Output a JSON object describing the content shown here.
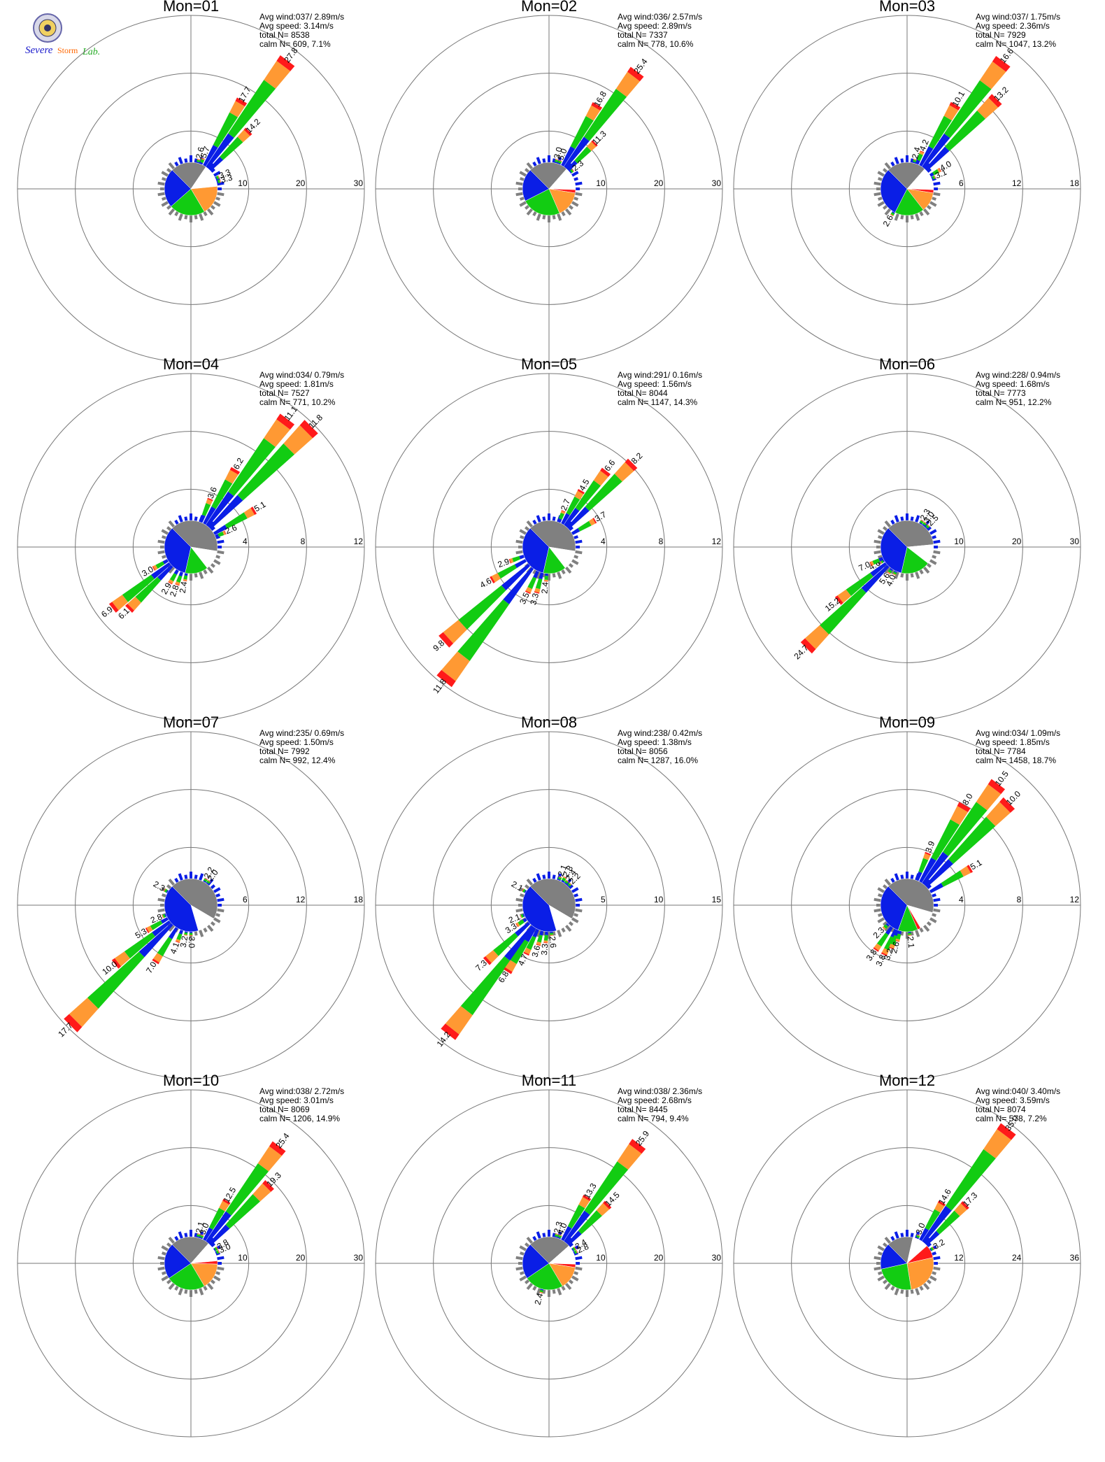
{
  "logo": {
    "line1": "Severe",
    "line2": "Storm",
    "line3": "Lab.",
    "icon": "university-seal-icon"
  },
  "colors": {
    "axis": "#000000",
    "ring": "#777777",
    "calm": "#ffffff",
    "blue": "#0a1ee6",
    "green": "#12cc12",
    "orange": "#ff9933",
    "red": "#ff1a1a",
    "gray": "#808080"
  },
  "chart_data": [
    {
      "type": "windrose",
      "title": "Mon=01",
      "avg_wind": "Avg wind:037/ 2.89m/s",
      "avg_speed": "Avg speed: 3.14m/s",
      "total_n": "total N=      8538",
      "calm_n": "calm N=    609,   7.1%",
      "rings": [
        10,
        20,
        30
      ],
      "pie": {
        "blue": 24,
        "green": 22,
        "orange": 18,
        "red": 0,
        "gray": 22,
        "white": 14
      },
      "bars": [
        {
          "dir": 37,
          "value": 27.8
        },
        {
          "dir": 30,
          "value": 17.7
        },
        {
          "dir": 45,
          "value": 14.2
        },
        {
          "dir": 22,
          "value": 5.7
        },
        {
          "dir": 15,
          "value": 2.6
        },
        {
          "dir": 67,
          "value": 3.3
        },
        {
          "dir": 75,
          "value": 3.3
        }
      ]
    },
    {
      "type": "windrose",
      "title": "Mon=02",
      "avg_wind": "Avg wind:036/ 2.57m/s",
      "avg_speed": "Avg speed: 2.89m/s",
      "total_n": "total N=      7337",
      "calm_n": "calm N=    778,  10.6%",
      "rings": [
        10,
        20,
        30
      ],
      "pie": {
        "blue": 20,
        "green": 24,
        "orange": 16,
        "red": 2,
        "gray": 24,
        "white": 14
      },
      "bars": [
        {
          "dir": 37,
          "value": 25.4
        },
        {
          "dir": 30,
          "value": 16.8
        },
        {
          "dir": 45,
          "value": 11.3
        },
        {
          "dir": 22,
          "value": 5.0
        },
        {
          "dir": 15,
          "value": 3.0
        },
        {
          "dir": 52,
          "value": 2.3
        }
      ]
    },
    {
      "type": "windrose",
      "title": "Mon=03",
      "avg_wind": "Avg wind:037/ 1.75m/s",
      "avg_speed": "Avg speed: 2.36m/s",
      "total_n": "total N=      7929",
      "calm_n": "calm N=   1047,  13.2%",
      "rings": [
        6,
        12,
        18
      ],
      "pie": {
        "blue": 30,
        "green": 18,
        "orange": 12,
        "red": 2,
        "gray": 24,
        "white": 14
      },
      "bars": [
        {
          "dir": 37,
          "value": 16.6
        },
        {
          "dir": 45,
          "value": 13.2
        },
        {
          "dir": 30,
          "value": 10.1
        },
        {
          "dir": 22,
          "value": 4.2
        },
        {
          "dir": 15,
          "value": 2.4
        },
        {
          "dir": 60,
          "value": 4.0
        },
        {
          "dir": 67,
          "value": 3.1
        },
        {
          "dir": 210,
          "value": 2.6
        }
      ]
    },
    {
      "type": "windrose",
      "title": "Mon=04",
      "avg_wind": "Avg wind:034/ 0.79m/s",
      "avg_speed": "Avg speed: 1.81m/s",
      "total_n": "total N=      7527",
      "calm_n": "calm N=    771,  10.2%",
      "rings": [
        4,
        8,
        12
      ],
      "pie": {
        "blue": 34,
        "green": 14,
        "orange": 0,
        "red": 0,
        "gray": 40,
        "white": 12
      },
      "bars": [
        {
          "dir": 37,
          "value": 11.1
        },
        {
          "dir": 45,
          "value": 11.8
        },
        {
          "dir": 30,
          "value": 6.2
        },
        {
          "dir": 22,
          "value": 3.6
        },
        {
          "dir": 60,
          "value": 5.1
        },
        {
          "dir": 67,
          "value": 2.6
        },
        {
          "dir": 232,
          "value": 6.9
        },
        {
          "dir": 225,
          "value": 6.1
        },
        {
          "dir": 240,
          "value": 3.0
        },
        {
          "dir": 210,
          "value": 2.9
        },
        {
          "dir": 200,
          "value": 2.8
        },
        {
          "dir": 190,
          "value": 2.4
        }
      ]
    },
    {
      "type": "windrose",
      "title": "Mon=05",
      "avg_wind": "Avg wind:291/ 0.16m/s",
      "avg_speed": "Avg speed: 1.56m/s",
      "total_n": "total N=      8044",
      "calm_n": "calm N=   1147,  14.3%",
      "rings": [
        4,
        8,
        12
      ],
      "pie": {
        "blue": 34,
        "green": 14,
        "orange": 0,
        "red": 0,
        "gray": 40,
        "white": 12
      },
      "bars": [
        {
          "dir": 45,
          "value": 8.2
        },
        {
          "dir": 37,
          "value": 6.6
        },
        {
          "dir": 30,
          "value": 4.5
        },
        {
          "dir": 22,
          "value": 2.7
        },
        {
          "dir": 60,
          "value": 3.7
        },
        {
          "dir": 218,
          "value": 11.8
        },
        {
          "dir": 228,
          "value": 9.8
        },
        {
          "dir": 240,
          "value": 4.6
        },
        {
          "dir": 250,
          "value": 2.9
        },
        {
          "dir": 205,
          "value": 3.5
        },
        {
          "dir": 195,
          "value": 3.3
        },
        {
          "dir": 185,
          "value": 2.4
        }
      ]
    },
    {
      "type": "windrose",
      "title": "Mon=06",
      "avg_wind": "Avg wind:228/ 0.94m/s",
      "avg_speed": "Avg speed: 1.68m/s",
      "total_n": "total N=      7773",
      "calm_n": "calm N=    951,  12.2%",
      "rings": [
        10,
        20,
        30
      ],
      "pie": {
        "blue": 34,
        "green": 18,
        "orange": 0,
        "red": 0,
        "gray": 36,
        "white": 12
      },
      "bars": [
        {
          "dir": 225,
          "value": 24.7
        },
        {
          "dir": 232,
          "value": 15.2
        },
        {
          "dir": 240,
          "value": 4.6
        },
        {
          "dir": 245,
          "value": 7.0
        },
        {
          "dir": 215,
          "value": 5.6
        },
        {
          "dir": 205,
          "value": 4.0
        },
        {
          "dir": 30,
          "value": 2.3
        },
        {
          "dir": 37,
          "value": 3.0
        },
        {
          "dir": 45,
          "value": 2.5
        }
      ]
    },
    {
      "type": "windrose",
      "title": "Mon=07",
      "avg_wind": "Avg wind:235/ 0.69m/s",
      "avg_speed": "Avg speed: 1.50m/s",
      "total_n": "total N=      7992",
      "calm_n": "calm N=    992,  12.4%",
      "rings": [
        6,
        12,
        18
      ],
      "pie": {
        "blue": 42,
        "green": 0,
        "orange": 0,
        "red": 0,
        "gray": 46,
        "white": 12
      },
      "bars": [
        {
          "dir": 225,
          "value": 17.7
        },
        {
          "dir": 232,
          "value": 10.0
        },
        {
          "dir": 240,
          "value": 5.3
        },
        {
          "dir": 248,
          "value": 2.8
        },
        {
          "dir": 212,
          "value": 7.0
        },
        {
          "dir": 200,
          "value": 4.1
        },
        {
          "dir": 190,
          "value": 3.2
        },
        {
          "dir": 180,
          "value": 3.0
        },
        {
          "dir": 300,
          "value": 2.3
        },
        {
          "dir": 30,
          "value": 2.2
        },
        {
          "dir": 37,
          "value": 2.0
        }
      ]
    },
    {
      "type": "windrose",
      "title": "Mon=08",
      "avg_wind": "Avg wind:238/ 0.42m/s",
      "avg_speed": "Avg speed: 1.38m/s",
      "total_n": "total N=      8056",
      "calm_n": "calm N=   1287,  16.0%",
      "rings": [
        5,
        10,
        15
      ],
      "pie": {
        "blue": 42,
        "green": 0,
        "orange": 0,
        "red": 0,
        "gray": 46,
        "white": 12
      },
      "bars": [
        {
          "dir": 218,
          "value": 14.2
        },
        {
          "dir": 228,
          "value": 7.3
        },
        {
          "dir": 212,
          "value": 6.8
        },
        {
          "dir": 238,
          "value": 3.3
        },
        {
          "dir": 248,
          "value": 2.1
        },
        {
          "dir": 205,
          "value": 4.7
        },
        {
          "dir": 195,
          "value": 3.6
        },
        {
          "dir": 185,
          "value": 3.3
        },
        {
          "dir": 175,
          "value": 2.6
        },
        {
          "dir": 300,
          "value": 2.1
        },
        {
          "dir": 22,
          "value": 2.1
        },
        {
          "dir": 30,
          "value": 2.8
        },
        {
          "dir": 37,
          "value": 2.4
        },
        {
          "dir": 45,
          "value": 2.2
        }
      ]
    },
    {
      "type": "windrose",
      "title": "Mon=09",
      "avg_wind": "Avg wind:034/ 1.09m/s",
      "avg_speed": "Avg speed: 1.85m/s",
      "total_n": "total N=      7784",
      "calm_n": "calm N=   1458,  18.7%",
      "rings": [
        4,
        8,
        12
      ],
      "pie": {
        "blue": 32,
        "green": 12,
        "orange": 0,
        "red": 2,
        "gray": 42,
        "white": 12
      },
      "bars": [
        {
          "dir": 37,
          "value": 10.5
        },
        {
          "dir": 45,
          "value": 10.0
        },
        {
          "dir": 30,
          "value": 8.0
        },
        {
          "dir": 22,
          "value": 3.9
        },
        {
          "dir": 60,
          "value": 5.1
        },
        {
          "dir": 215,
          "value": 3.8
        },
        {
          "dir": 205,
          "value": 3.8
        },
        {
          "dir": 200,
          "value": 3.2
        },
        {
          "dir": 225,
          "value": 2.3
        },
        {
          "dir": 195,
          "value": 2.6
        },
        {
          "dir": 175,
          "value": 2.1
        }
      ]
    },
    {
      "type": "windrose",
      "title": "Mon=10",
      "avg_wind": "Avg wind:038/ 2.72m/s",
      "avg_speed": "Avg speed: 3.01m/s",
      "total_n": "total N=      8069",
      "calm_n": "calm N=   1206,  14.9%",
      "rings": [
        10,
        20,
        30
      ],
      "pie": {
        "blue": 22,
        "green": 24,
        "orange": 16,
        "red": 2,
        "gray": 24,
        "white": 12
      },
      "bars": [
        {
          "dir": 37,
          "value": 25.4
        },
        {
          "dir": 45,
          "value": 19.3
        },
        {
          "dir": 30,
          "value": 12.5
        },
        {
          "dir": 22,
          "value": 3.0
        },
        {
          "dir": 15,
          "value": 2.1
        },
        {
          "dir": 60,
          "value": 3.8
        },
        {
          "dir": 67,
          "value": 3.0
        }
      ]
    },
    {
      "type": "windrose",
      "title": "Mon=11",
      "avg_wind": "Avg wind:038/ 2.36m/s",
      "avg_speed": "Avg speed: 2.68m/s",
      "total_n": "total N=      8445",
      "calm_n": "calm N=    794,   9.4%",
      "rings": [
        10,
        20,
        30
      ],
      "pie": {
        "blue": 22,
        "green": 24,
        "orange": 14,
        "red": 2,
        "gray": 26,
        "white": 12
      },
      "bars": [
        {
          "dir": 37,
          "value": 25.9
        },
        {
          "dir": 45,
          "value": 14.5
        },
        {
          "dir": 30,
          "value": 13.3
        },
        {
          "dir": 22,
          "value": 4.0
        },
        {
          "dir": 15,
          "value": 2.3
        },
        {
          "dir": 60,
          "value": 2.4
        },
        {
          "dir": 67,
          "value": 2.8
        },
        {
          "dir": 195,
          "value": 2.4
        }
      ]
    },
    {
      "type": "windrose",
      "title": "Mon=12",
      "avg_wind": "Avg wind:040/ 3.40m/s",
      "avg_speed": "Avg speed: 3.59m/s",
      "total_n": "total N=      8074",
      "calm_n": "calm N=    578,   7.2%",
      "rings": [
        12,
        24,
        36
      ],
      "pie": {
        "blue": 16,
        "green": 24,
        "orange": 26,
        "red": 8,
        "gray": 16,
        "white": 10
      },
      "bars": [
        {
          "dir": 37,
          "value": 35.0
        },
        {
          "dir": 45,
          "value": 17.3
        },
        {
          "dir": 30,
          "value": 14.6
        },
        {
          "dir": 22,
          "value": 3.0
        },
        {
          "dir": 60,
          "value": 3.2
        }
      ]
    }
  ]
}
